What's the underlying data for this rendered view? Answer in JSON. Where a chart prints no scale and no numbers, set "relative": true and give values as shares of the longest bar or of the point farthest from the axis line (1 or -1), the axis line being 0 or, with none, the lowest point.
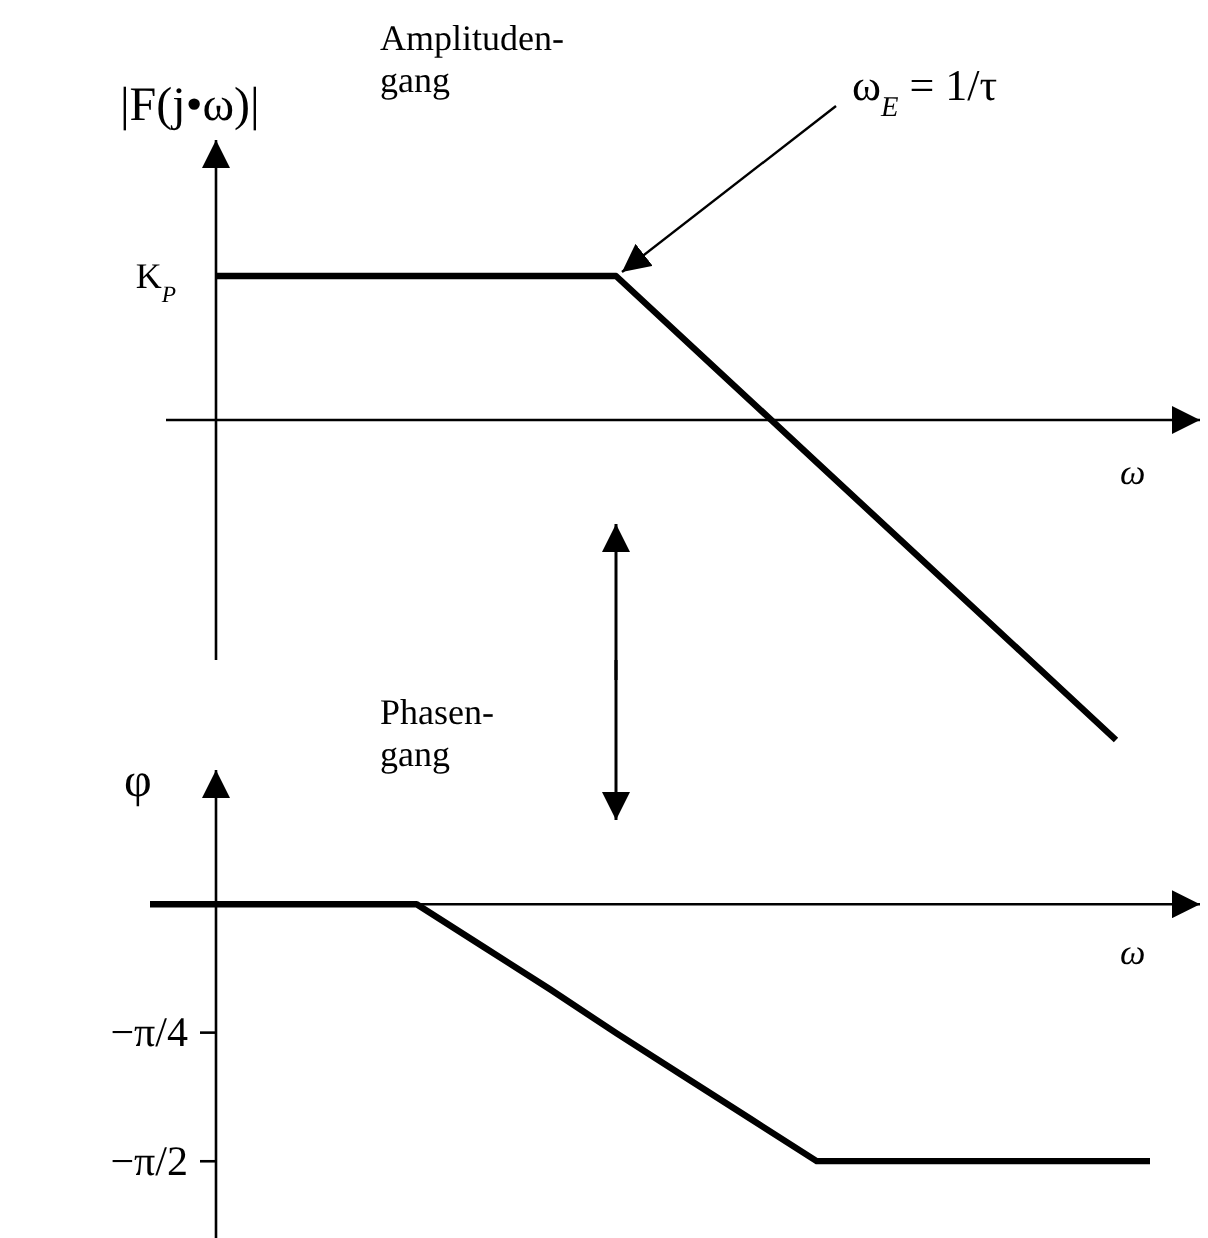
{
  "chart_data": [
    {
      "type": "line",
      "title": "Amplituden-\ngang",
      "ylabel": "|F(j•ω)|",
      "xlabel": "ω",
      "relative": true,
      "categories": [
        null,
        null,
        null,
        null,
        null,
        null,
        null,
        null,
        null,
        null
      ],
      "values": [
        0.45,
        0.45,
        0.45,
        0.45,
        0.45,
        0.16,
        -0.13,
        -0.42,
        -0.71,
        -1
      ],
      "color": "#000000",
      "tick_labels": false,
      "annotations": [
        "K$_{P}$",
        "ω$_{E}$ = 1/τ"
      ]
    },
    {
      "type": "line",
      "title": "Phasen-\ngang",
      "ylabel": "φ",
      "xlabel": "ω",
      "categories": [
        null,
        null,
        null,
        null,
        null,
        null,
        null,
        null,
        null,
        null,
        null,
        null,
        null,
        null,
        null,
        null
      ],
      "values": [
        0,
        0,
        0,
        0,
        0,
        -0.26,
        -0.52,
        -0.79,
        -1.05,
        -1.31,
        -1.57,
        -1.57,
        -1.57,
        -1.57,
        -1.57,
        -1.57
      ],
      "color": "#000000",
      "ylim": [
        -2.04,
        0.82
      ],
      "yticks": [
        {
          "value": -0.785,
          "label": "−π/4"
        },
        {
          "value": -1.571,
          "label": "−π/2"
        }
      ],
      "tick_labels": "y"
    }
  ]
}
